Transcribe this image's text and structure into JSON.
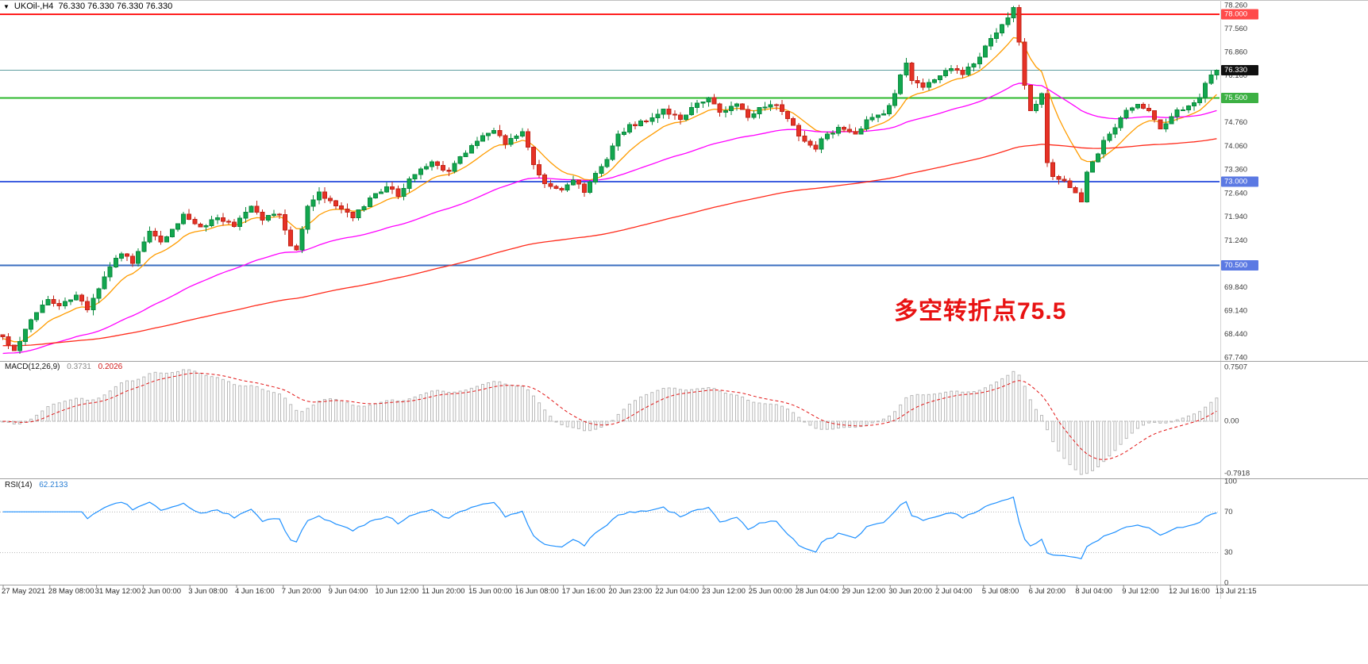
{
  "window": {
    "title_icon": "▼",
    "symbol": "UKOil-,H4",
    "quotes": "76.330 76.330 76.330 76.330"
  },
  "annotation": {
    "text": "多空转折点75.5",
    "color": "#e81212"
  },
  "colors": {
    "bull_fill": "#12a74f",
    "bull_stroke": "#0b8a3e",
    "bear_fill": "#e63226",
    "bear_stroke": "#c22418",
    "macd_bar": "#b8b8b8",
    "macd_signal": "#e21414",
    "rsi_line": "#1e90ff",
    "axis_text": "#3a3a3a",
    "separator": "#a0a0a0",
    "grid_dotted": "#b5b5b5"
  },
  "chart_data": {
    "type": "candlestick",
    "title": "UKOil-,H4",
    "panes": [
      "price",
      "MACD",
      "RSI"
    ],
    "price_range": [
      67.74,
      78.26
    ],
    "x_labels": [
      "27 May 2021",
      "28 May 08:00",
      "31 May 12:00",
      "2 Jun 00:00",
      "3 Jun 08:00",
      "4 Jun 16:00",
      "7 Jun 20:00",
      "9 Jun 04:00",
      "10 Jun 12:00",
      "11 Jun 20:00",
      "15 Jun 00:00",
      "16 Jun 08:00",
      "17 Jun 16:00",
      "20 Jun 23:00",
      "22 Jun 04:00",
      "23 Jun 12:00",
      "25 Jun 00:00",
      "28 Jun 04:00",
      "29 Jun 12:00",
      "30 Jun 20:00",
      "2 Jul 04:00",
      "5 Jul 08:00",
      "6 Jul 20:00",
      "8 Jul 04:00",
      "9 Jul 12:00",
      "12 Jul 16:00",
      "13 Jul 21:15"
    ],
    "price_axis": {
      "ticks": [
        {
          "label": "78.260",
          "price": 78.26
        },
        {
          "label": "77.560",
          "price": 77.56
        },
        {
          "label": "76.860",
          "price": 76.86
        },
        {
          "label": "76.160",
          "price": 76.16
        },
        {
          "label": "74.760",
          "price": 74.76
        },
        {
          "label": "74.060",
          "price": 74.06
        },
        {
          "label": "73.360",
          "price": 73.36
        },
        {
          "label": "72.640",
          "price": 72.64
        },
        {
          "label": "71.940",
          "price": 71.94
        },
        {
          "label": "71.240",
          "price": 71.24
        },
        {
          "label": "69.840",
          "price": 69.84
        },
        {
          "label": "69.140",
          "price": 69.14
        },
        {
          "label": "68.440",
          "price": 68.44
        },
        {
          "label": "67.740",
          "price": 67.74
        }
      ],
      "badges": [
        {
          "label": "78.000",
          "price": 78.0,
          "bg": "#ff4a4a",
          "fg": "#ffffff"
        },
        {
          "label": "76.330",
          "price": 76.33,
          "bg": "#101010",
          "fg": "#ffffff"
        },
        {
          "label": "75.500",
          "price": 75.5,
          "bg": "#3cb043",
          "fg": "#ffffff"
        },
        {
          "label": "73.000",
          "price": 73.0,
          "bg": "#5b79e3",
          "fg": "#ffffff"
        },
        {
          "label": "70.500",
          "price": 70.5,
          "bg": "#5b79e3",
          "fg": "#ffffff"
        }
      ]
    },
    "hlines": [
      {
        "name": "resistance-78000",
        "price": 78.0,
        "color": "#ff2020",
        "width": 2
      },
      {
        "name": "pivot-75500",
        "price": 75.5,
        "color": "#2db82d",
        "width": 2
      },
      {
        "name": "support-73000",
        "price": 73.0,
        "color": "#3f5fe0",
        "width": 1.6
      },
      {
        "name": "support-70500",
        "price": 70.5,
        "color": "#3a6ec0",
        "width": 1.6
      },
      {
        "name": "current-price-line",
        "price": 76.33,
        "color": "#5f9ea0",
        "width": 1
      }
    ],
    "moving_averages": [
      {
        "name": "ema-fast",
        "color": "#ff9c00",
        "period": 10,
        "seed": 68.3
      },
      {
        "name": "ema-medium",
        "color": "#ff00ff",
        "period": 48,
        "seed": 67.85
      },
      {
        "name": "ema-slow",
        "color": "#ff2a1a",
        "period": 150,
        "seed": 68.1
      }
    ],
    "candles": {
      "count": 216,
      "last_close": 76.33,
      "close_anchors": [
        [
          0,
          68.35
        ],
        [
          2,
          67.95
        ],
        [
          4,
          68.6
        ],
        [
          6,
          69.05
        ],
        [
          8,
          69.5
        ],
        [
          10,
          69.25
        ],
        [
          13,
          69.6
        ],
        [
          15,
          69.15
        ],
        [
          18,
          70.2
        ],
        [
          21,
          70.9
        ],
        [
          23,
          70.55
        ],
        [
          26,
          71.5
        ],
        [
          28,
          71.15
        ],
        [
          32,
          72.0
        ],
        [
          35,
          71.6
        ],
        [
          38,
          71.95
        ],
        [
          41,
          71.7
        ],
        [
          44,
          72.25
        ],
        [
          46,
          71.9
        ],
        [
          49,
          72.05
        ],
        [
          51,
          71.05
        ],
        [
          52,
          70.95
        ],
        [
          54,
          72.3
        ],
        [
          56,
          72.65
        ],
        [
          59,
          72.3
        ],
        [
          62,
          71.9
        ],
        [
          65,
          72.5
        ],
        [
          68,
          72.85
        ],
        [
          70,
          72.6
        ],
        [
          73,
          73.25
        ],
        [
          76,
          73.55
        ],
        [
          79,
          73.3
        ],
        [
          82,
          73.9
        ],
        [
          85,
          74.35
        ],
        [
          87,
          74.55
        ],
        [
          89,
          74.15
        ],
        [
          92,
          74.45
        ],
        [
          94,
          73.5
        ],
        [
          96,
          72.9
        ],
        [
          99,
          72.75
        ],
        [
          101,
          73.05
        ],
        [
          103,
          72.7
        ],
        [
          105,
          73.3
        ],
        [
          107,
          73.65
        ],
        [
          109,
          74.4
        ],
        [
          111,
          74.65
        ],
        [
          114,
          74.85
        ],
        [
          117,
          75.15
        ],
        [
          120,
          74.9
        ],
        [
          122,
          75.2
        ],
        [
          125,
          75.45
        ],
        [
          127,
          75.1
        ],
        [
          130,
          75.3
        ],
        [
          132,
          74.95
        ],
        [
          134,
          75.2
        ],
        [
          137,
          75.35
        ],
        [
          139,
          74.9
        ],
        [
          142,
          74.15
        ],
        [
          144,
          73.95
        ],
        [
          145,
          74.3
        ],
        [
          148,
          74.6
        ],
        [
          151,
          74.45
        ],
        [
          153,
          74.8
        ],
        [
          156,
          75.0
        ],
        [
          158,
          75.6
        ],
        [
          159,
          76.2
        ],
        [
          160,
          76.6
        ],
        [
          161,
          76.0
        ],
        [
          163,
          75.8
        ],
        [
          165,
          76.1
        ],
        [
          168,
          76.35
        ],
        [
          170,
          76.2
        ],
        [
          172,
          76.55
        ],
        [
          174,
          77.0
        ],
        [
          176,
          77.45
        ],
        [
          178,
          77.85
        ],
        [
          179,
          78.15
        ],
        [
          180,
          77.2
        ],
        [
          181,
          75.9
        ],
        [
          182,
          75.1
        ],
        [
          183,
          75.35
        ],
        [
          184,
          75.6
        ],
        [
          185,
          73.6
        ],
        [
          186,
          73.1
        ],
        [
          188,
          73.0
        ],
        [
          189,
          72.8
        ],
        [
          191,
          72.45
        ],
        [
          192,
          73.3
        ],
        [
          194,
          73.8
        ],
        [
          195,
          74.2
        ],
        [
          197,
          74.55
        ],
        [
          199,
          75.15
        ],
        [
          201,
          75.3
        ],
        [
          203,
          75.1
        ],
        [
          205,
          74.6
        ],
        [
          207,
          74.95
        ],
        [
          208,
          75.1
        ],
        [
          210,
          75.3
        ],
        [
          212,
          75.45
        ],
        [
          213,
          75.95
        ],
        [
          215,
          76.33
        ]
      ]
    },
    "macd": {
      "label": "MACD(12,26,9)",
      "value_main": "0.3731",
      "value_signal": "0.2026",
      "params": [
        12,
        26,
        9
      ],
      "axis_labels": [
        "0.7507",
        "0.00",
        "-0.7918"
      ]
    },
    "rsi": {
      "label": "RSI(14)",
      "value": "62.2133",
      "period": 14,
      "axis_labels": [
        "100",
        "70",
        "30",
        "0"
      ],
      "levels": [
        70,
        30
      ]
    }
  }
}
